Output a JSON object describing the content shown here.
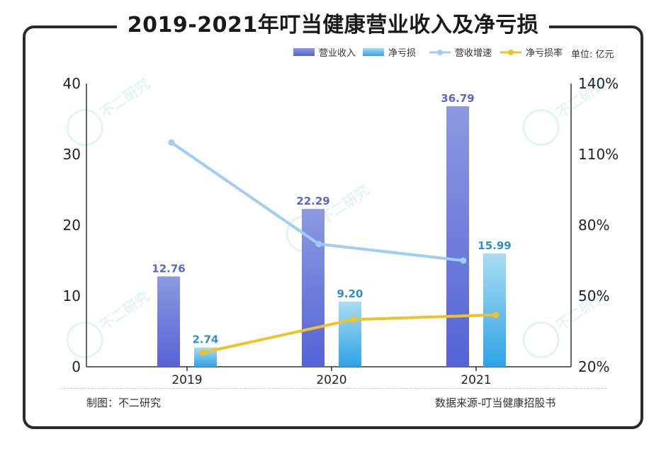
{
  "title": "2019-2021年叮当健康营业收入及净亏损",
  "unit": "单位: 亿元",
  "footer": {
    "left": "制图：不二研究",
    "right": "数据来源-叮当健康招股书"
  },
  "watermark": [
    "不二研究",
    "不二研究",
    "不二研究",
    "不二研究"
  ],
  "colors": {
    "revenue_top": "#8b9ae0",
    "revenue_bottom": "#5662d6",
    "loss_top": "#a9dcf2",
    "loss_bottom": "#2fa3e6",
    "growth_line": "#9fcdf5",
    "loss_rate_line": "#efc12a",
    "revenue_label": "#5a67c8",
    "loss_label": "#2d8fd0"
  },
  "chart_data": {
    "type": "bar",
    "categories": [
      "2019",
      "2020",
      "2021"
    ],
    "series": [
      {
        "name": "营业收入",
        "kind": "bar",
        "axis": "left",
        "values": [
          12.76,
          22.29,
          36.79
        ],
        "labels": [
          "12.76",
          "22.29",
          "36.79"
        ]
      },
      {
        "name": "净亏损",
        "kind": "bar",
        "axis": "left",
        "values": [
          2.74,
          9.2,
          15.99
        ],
        "labels": [
          "2.74",
          "9.20",
          "15.99"
        ]
      },
      {
        "name": "营收增速",
        "kind": "line",
        "axis": "right",
        "values": [
          115,
          72,
          65
        ]
      },
      {
        "name": "净亏损率",
        "kind": "line",
        "axis": "right",
        "values": [
          26,
          40,
          42
        ]
      }
    ],
    "y_left": {
      "min": 0,
      "max": 40,
      "ticks": [
        "0",
        "10",
        "20",
        "30",
        "40"
      ]
    },
    "y_right": {
      "min": 20,
      "max": 140,
      "ticks": [
        "20%",
        "50%",
        "80%",
        "110%",
        "140%"
      ]
    },
    "legend_position": "top-right",
    "grid": false
  }
}
